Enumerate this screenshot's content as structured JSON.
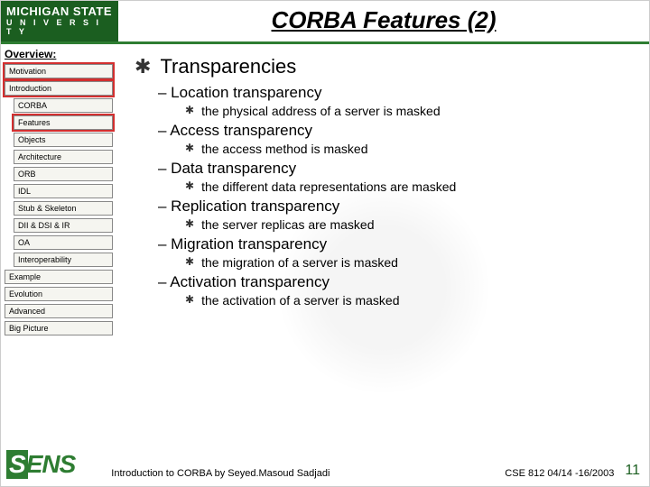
{
  "header": {
    "logo_line1": "MICHIGAN STATE",
    "logo_line2": "U N I V E R S I T Y",
    "title": "CORBA Features (2)"
  },
  "sidebar": {
    "label": "Overview:",
    "items": [
      {
        "label": "Motivation",
        "highlight": "red",
        "indent": false
      },
      {
        "label": "Introduction",
        "highlight": "red",
        "indent": false
      },
      {
        "label": "CORBA",
        "highlight": null,
        "indent": true
      },
      {
        "label": "Features",
        "highlight": "red",
        "indent": true
      },
      {
        "label": "Objects",
        "highlight": null,
        "indent": true
      },
      {
        "label": "Architecture",
        "highlight": null,
        "indent": true
      },
      {
        "label": "ORB",
        "highlight": null,
        "indent": true
      },
      {
        "label": "IDL",
        "highlight": null,
        "indent": true
      },
      {
        "label": "Stub & Skeleton",
        "highlight": null,
        "indent": true
      },
      {
        "label": "DII & DSI & IR",
        "highlight": null,
        "indent": true
      },
      {
        "label": "OA",
        "highlight": null,
        "indent": true
      },
      {
        "label": "Interoperability",
        "highlight": null,
        "indent": true
      },
      {
        "label": "Example",
        "highlight": null,
        "indent": false
      },
      {
        "label": "Evolution",
        "highlight": null,
        "indent": false
      },
      {
        "label": "Advanced",
        "highlight": null,
        "indent": false
      },
      {
        "label": "Big Picture",
        "highlight": null,
        "indent": false
      }
    ]
  },
  "content": {
    "bullet_glyph": "✱",
    "main": "Transparencies",
    "subs": [
      {
        "h": "– Location transparency",
        "d": "the physical address of a server is masked"
      },
      {
        "h": "– Access transparency",
        "d": "the access method is masked"
      },
      {
        "h": "– Data transparency",
        "d": "the different data representations are masked"
      },
      {
        "h": "– Replication transparency",
        "d": "the server replicas are masked"
      },
      {
        "h": "– Migration transparency",
        "d": "the migration of a server is masked"
      },
      {
        "h": "– Activation transparency",
        "d": "the activation of a server is masked"
      }
    ]
  },
  "footer": {
    "sens": "ENS",
    "intro": "Introduction to CORBA by Seyed.Masoud Sadjadi",
    "course": "CSE 812   04/14 -16/2003",
    "num": "11"
  },
  "colors": {
    "msu_green": "#1b5e20",
    "accent_green": "#2e7d32",
    "highlight_red": "#d32f2f"
  }
}
